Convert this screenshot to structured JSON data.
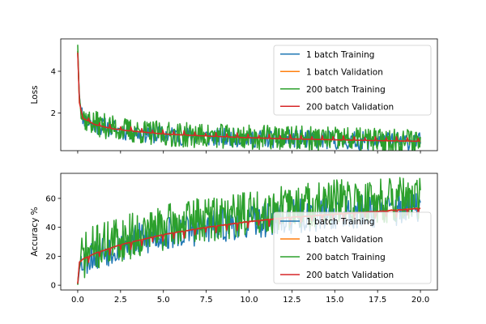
{
  "chart_data": [
    {
      "type": "line",
      "xlabel": "",
      "ylabel": "Loss",
      "xlim": [
        -0.99,
        20.99
      ],
      "ylim": [
        0.2,
        5.55
      ],
      "xticks": [
        0.0,
        2.5,
        5.0,
        7.5,
        10.0,
        12.5,
        15.0,
        17.5,
        20.0
      ],
      "yticks": [
        2,
        4
      ],
      "xticklabels_visible": false,
      "legend_position": "upper right",
      "series": [
        {
          "name": "1 batch Training",
          "color": "#1f77b4",
          "kind": "noisy",
          "anchors": [
            [
              0,
              5.0
            ],
            [
              0.08,
              3.0
            ],
            [
              0.2,
              2.0
            ],
            [
              0.5,
              1.6
            ],
            [
              1,
              1.45
            ],
            [
              2,
              1.25
            ],
            [
              3,
              1.1
            ],
            [
              5,
              0.95
            ],
            [
              7.5,
              0.85
            ],
            [
              10,
              0.8
            ],
            [
              12.5,
              0.75
            ],
            [
              15,
              0.7
            ],
            [
              17.5,
              0.65
            ],
            [
              20,
              0.65
            ]
          ],
          "noise_amp": 0.45,
          "n": 400,
          "seed": 11
        },
        {
          "name": "1 batch Validation",
          "color": "#ff7f0e",
          "kind": "smooth",
          "anchors": [
            [
              0,
              5.0
            ],
            [
              0.1,
              2.5
            ],
            [
              0.3,
              1.8
            ],
            [
              1,
              1.45
            ],
            [
              2,
              1.25
            ],
            [
              3,
              1.15
            ],
            [
              5,
              1.0
            ],
            [
              7.5,
              0.9
            ],
            [
              10,
              0.82
            ],
            [
              12.5,
              0.76
            ],
            [
              15,
              0.72
            ],
            [
              17.5,
              0.68
            ],
            [
              20,
              0.65
            ]
          ],
          "n": 200,
          "seed": 23
        },
        {
          "name": "200 batch Training",
          "color": "#2ca02c",
          "kind": "noisy",
          "anchors": [
            [
              0,
              5.3
            ],
            [
              0.08,
              3.0
            ],
            [
              0.2,
              2.0
            ],
            [
              0.5,
              1.65
            ],
            [
              1,
              1.5
            ],
            [
              2,
              1.3
            ],
            [
              3,
              1.15
            ],
            [
              5,
              1.0
            ],
            [
              7.5,
              0.9
            ],
            [
              10,
              0.85
            ],
            [
              12.5,
              0.8
            ],
            [
              15,
              0.75
            ],
            [
              17.5,
              0.7
            ],
            [
              20,
              0.7
            ]
          ],
          "noise_amp": 0.6,
          "n": 500,
          "seed": 37
        },
        {
          "name": "200 batch Validation",
          "color": "#d62728",
          "kind": "sawtooth",
          "anchors": [
            [
              0,
              4.9
            ],
            [
              0.1,
              2.5
            ],
            [
              0.3,
              1.75
            ],
            [
              1,
              1.45
            ],
            [
              2,
              1.25
            ],
            [
              3,
              1.15
            ],
            [
              5,
              1.0
            ],
            [
              7.5,
              0.9
            ],
            [
              10,
              0.82
            ],
            [
              12.5,
              0.76
            ],
            [
              15,
              0.72
            ],
            [
              17.5,
              0.68
            ],
            [
              20,
              0.65
            ]
          ],
          "spike_every": 0.62,
          "spike_amp": 0.2,
          "n": 600,
          "seed": 41
        }
      ]
    },
    {
      "type": "line",
      "xlabel": "",
      "ylabel": "Accuracy %",
      "xlim": [
        -0.99,
        20.99
      ],
      "ylim": [
        -3.3,
        77.3
      ],
      "xticks": [
        0.0,
        2.5,
        5.0,
        7.5,
        10.0,
        12.5,
        15.0,
        17.5,
        20.0
      ],
      "xticklabels": [
        "0.0",
        "2.5",
        "5.0",
        "7.5",
        "10.0",
        "12.5",
        "15.0",
        "17.5",
        "20.0"
      ],
      "yticks": [
        0,
        20,
        40,
        60
      ],
      "xticklabels_visible": true,
      "legend_position": "lower right",
      "series": [
        {
          "name": "1 batch Training",
          "color": "#1f77b4",
          "kind": "noisy",
          "anchors": [
            [
              0,
              1
            ],
            [
              0.1,
              12
            ],
            [
              0.3,
              18
            ],
            [
              1,
              22
            ],
            [
              2.5,
              28
            ],
            [
              5,
              35
            ],
            [
              7.5,
              40
            ],
            [
              10,
              44
            ],
            [
              12.5,
              47
            ],
            [
              15,
              50
            ],
            [
              17.5,
              52
            ],
            [
              20,
              54
            ]
          ],
          "noise_amp": 12,
          "n": 400,
          "seed": 53
        },
        {
          "name": "1 batch Validation",
          "color": "#ff7f0e",
          "kind": "smooth",
          "anchors": [
            [
              0,
              1
            ],
            [
              0.1,
              15
            ],
            [
              0.3,
              18
            ],
            [
              1,
              22
            ],
            [
              2.5,
              28
            ],
            [
              5,
              35
            ],
            [
              7.5,
              40
            ],
            [
              10,
              44
            ],
            [
              12.5,
              47
            ],
            [
              15,
              49
            ],
            [
              17.5,
              51
            ],
            [
              20,
              53
            ]
          ],
          "n": 200,
          "seed": 61
        },
        {
          "name": "200 batch Training",
          "color": "#2ca02c",
          "kind": "noisy",
          "anchors": [
            [
              0,
              1
            ],
            [
              0.1,
              14
            ],
            [
              0.3,
              20
            ],
            [
              1,
              26
            ],
            [
              2.5,
              32
            ],
            [
              5,
              40
            ],
            [
              7.5,
              46
            ],
            [
              10,
              50
            ],
            [
              12.5,
              54
            ],
            [
              15,
              57
            ],
            [
              17.5,
              59
            ],
            [
              20,
              58
            ]
          ],
          "noise_amp": 16,
          "n": 500,
          "seed": 71
        },
        {
          "name": "200 batch Validation",
          "color": "#d62728",
          "kind": "sawtooth",
          "anchors": [
            [
              0,
              1
            ],
            [
              0.1,
              16
            ],
            [
              0.3,
              18
            ],
            [
              1,
              22
            ],
            [
              2.5,
              28
            ],
            [
              5,
              35
            ],
            [
              7.5,
              40
            ],
            [
              10,
              44
            ],
            [
              12.5,
              47
            ],
            [
              15,
              49
            ],
            [
              17.5,
              51
            ],
            [
              20,
              53
            ]
          ],
          "spike_every": 0.62,
          "spike_amp": -5,
          "n": 600,
          "seed": 83
        }
      ]
    }
  ]
}
